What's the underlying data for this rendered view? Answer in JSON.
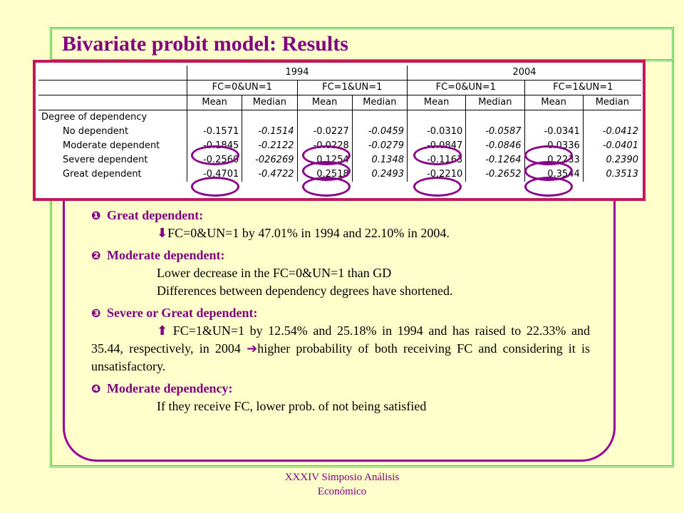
{
  "title": "Bivariate probit model: Results",
  "table": {
    "years": [
      "1994",
      "2004"
    ],
    "outcomes": [
      "FC=0&UN=1",
      "FC=1&UN=1",
      "FC=0&UN=1",
      "FC=1&UN=1"
    ],
    "stats": [
      "Mean",
      "Median",
      "Mean",
      "Median",
      "Mean",
      "Median",
      "Mean",
      "Median"
    ],
    "group_label": "Degree of dependency",
    "rows": [
      {
        "label": "No dependent",
        "values": [
          "-0.1571",
          "-0.1514",
          "-0.0227",
          "-0.0459",
          "-0.0310",
          "-0.0587",
          "-0.0341",
          "-0.0412"
        ]
      },
      {
        "label": "Moderate dependent",
        "values": [
          "-0.1845",
          "-0.2122",
          "-0.0228",
          "-0.0279",
          "-0.0847",
          "-0.0846",
          "-0.0336",
          "-0.0401"
        ]
      },
      {
        "label": "Severe dependent",
        "values": [
          "-0.2560",
          "-026269",
          "0.1254",
          "0.1348",
          "-0.1163",
          "-0.1264",
          "0.2233",
          "0.2390"
        ]
      },
      {
        "label": "Great dependent",
        "values": [
          "-0.4701",
          "-0.4722",
          "0.2518",
          "0.2493",
          "-0.2210",
          "-0.2652",
          "0.3544",
          "0.3513"
        ]
      }
    ]
  },
  "points": [
    {
      "bullet": "❶",
      "heading": "Great dependent:",
      "arrow": "⬇",
      "lines": [
        "FC=0&UN=1 by 47.01% in 1994 and 22.10% in 2004."
      ]
    },
    {
      "bullet": "❷",
      "heading": "Moderate dependent:",
      "lines": [
        "Lower decrease in the FC=0&UN=1 than GD",
        "Differences between dependency degrees have shortened."
      ]
    },
    {
      "bullet": "❸",
      "heading": "Severe or Great dependent:",
      "arrow": "⬆",
      "text_a": "FC=1&UN=1 by 12.54% and 25.18% in 1994 and has raised to 22.33% and 35.44, respectively, in 2004",
      "arrow2": "➔",
      "text_b": "higher probability of both receiving FC and considering it is unsatisfactory."
    },
    {
      "bullet": "❹",
      "heading": "Moderate dependency:",
      "lines": [
        "If they receive FC, lower prob. of not being satisfied"
      ]
    }
  ],
  "footer": [
    "XXXIV Simposio Análisis",
    "Económico"
  ]
}
